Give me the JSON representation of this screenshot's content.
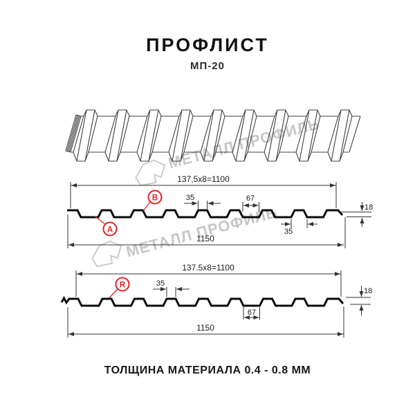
{
  "header": {
    "title": "ПРОФЛИСТ",
    "subtitle": "МП-20"
  },
  "watermark": {
    "text": "МЕТАЛЛ ПРОФИЛЬ"
  },
  "colors": {
    "accent_red": "#e3211f",
    "profile_line": "#0a0a0a",
    "dimension_gray": "#333333",
    "watermark_gray": "#c9c9c9"
  },
  "profile_top": {
    "module_width": "137,5x8=1100",
    "total_width": "1150",
    "profile_height": "18",
    "crest_top_width": "35",
    "valley_width": "67",
    "crest_base_width": "35",
    "side_label_a": "A",
    "side_label_b": "B"
  },
  "profile_bottom": {
    "module_width": "137.5x8=1100",
    "total_width": "1150",
    "profile_height": "18",
    "crest_top_width": "35",
    "valley_width": "67",
    "side_label_r": "R"
  },
  "footer": {
    "material_note": "ТОЛЩИНА МАТЕРИАЛА 0.4 - 0.8 ММ"
  }
}
